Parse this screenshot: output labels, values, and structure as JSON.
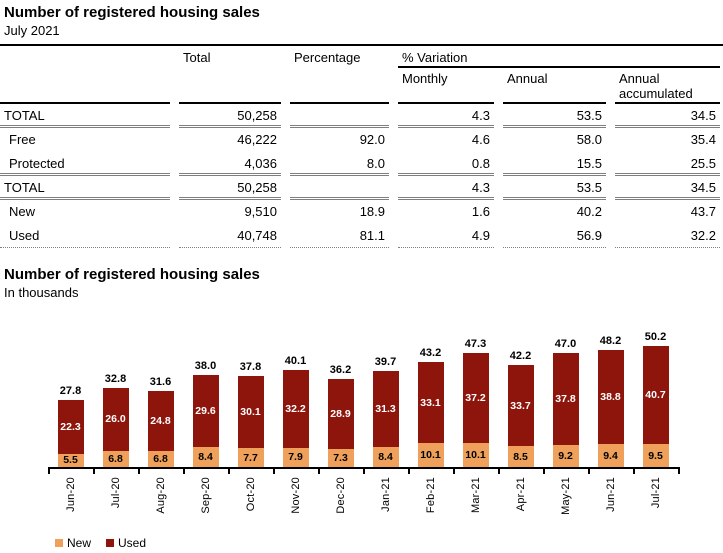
{
  "table": {
    "title": "Number of registered housing sales",
    "subtitle": "July 2021",
    "headers": {
      "total": "Total",
      "percentage": "Percentage",
      "variation_group": "% Variation",
      "monthly": "Monthly",
      "annual": "Annual",
      "annual_accumulated": "Annual accumulated"
    },
    "rows": [
      {
        "label": "TOTAL",
        "total": "50,258",
        "percentage": "",
        "monthly": "4.3",
        "annual": "53.5",
        "annual_accumulated": "34.5"
      },
      {
        "label": "Free",
        "total": "46,222",
        "percentage": "92.0",
        "monthly": "4.6",
        "annual": "58.0",
        "annual_accumulated": "35.4"
      },
      {
        "label": "Protected",
        "total": "4,036",
        "percentage": "8.0",
        "monthly": "0.8",
        "annual": "15.5",
        "annual_accumulated": "25.5"
      },
      {
        "label": "TOTAL",
        "total": "50,258",
        "percentage": "",
        "monthly": "4.3",
        "annual": "53.5",
        "annual_accumulated": "34.5"
      },
      {
        "label": "New",
        "total": "9,510",
        "percentage": "18.9",
        "monthly": "1.6",
        "annual": "40.2",
        "annual_accumulated": "43.7"
      },
      {
        "label": "Used",
        "total": "40,748",
        "percentage": "81.1",
        "monthly": "4.9",
        "annual": "56.9",
        "annual_accumulated": "32.2"
      }
    ]
  },
  "chart": {
    "title": "Number of registered housing sales",
    "subtitle": "In thousands"
  },
  "chart_data": {
    "type": "bar",
    "stacked": true,
    "title": "Number of registered housing sales",
    "ylabel": "In thousands",
    "grid": false,
    "legend_position": "bottom-left",
    "value_labels": true,
    "categories": [
      "Jun-20",
      "Jul-20",
      "Aug-20",
      "Sep-20",
      "Oct-20",
      "Nov-20",
      "Dec-20",
      "Jan-21",
      "Feb-21",
      "Mar-21",
      "Apr-21",
      "May-21",
      "Jun-21",
      "Jul-21"
    ],
    "series": [
      {
        "name": "New",
        "color": "#EFA15B",
        "label_color": "#000000",
        "values": [
          5.5,
          6.8,
          6.8,
          8.4,
          7.7,
          7.9,
          7.3,
          8.4,
          10.1,
          10.1,
          8.5,
          9.2,
          9.4,
          9.5
        ]
      },
      {
        "name": "Used",
        "color": "#8E150C",
        "label_color": "#FFFFFF",
        "values": [
          22.3,
          26.0,
          24.8,
          29.6,
          30.1,
          32.2,
          28.9,
          31.3,
          33.1,
          37.2,
          33.7,
          37.8,
          38.8,
          40.7
        ]
      }
    ],
    "totals": [
      27.8,
      32.8,
      31.6,
      38.0,
      37.8,
      40.1,
      36.2,
      39.7,
      43.2,
      47.3,
      42.2,
      47.0,
      48.2,
      50.2
    ],
    "ylim": [
      0,
      52
    ]
  }
}
